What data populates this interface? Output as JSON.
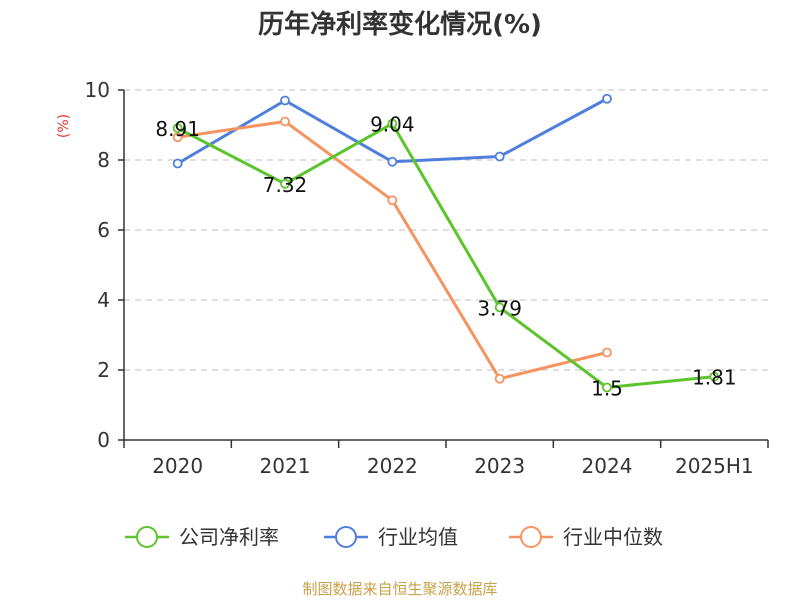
{
  "chart_data": {
    "type": "line",
    "title": "历年净利率变化情况(%)",
    "ylabel": "(%)",
    "xlabel": "",
    "categories": [
      "2020",
      "2021",
      "2022",
      "2023",
      "2024",
      "2025H1"
    ],
    "ylim": [
      0,
      10
    ],
    "yticks": [
      "0",
      "2",
      "4",
      "6",
      "8",
      "10"
    ],
    "grid": true,
    "legend_position": "bottom",
    "series": [
      {
        "name": "公司净利率",
        "color": "#5cc42c",
        "values": [
          8.91,
          7.32,
          9.04,
          3.79,
          1.5,
          1.81
        ],
        "labels": [
          "8.91",
          "7.32",
          "9.04",
          "3.79",
          "1.5",
          "1.81"
        ]
      },
      {
        "name": "行业均值",
        "color": "#4f7fdc",
        "values": [
          7.9,
          9.7,
          7.95,
          8.1,
          9.75,
          null
        ]
      },
      {
        "name": "行业中位数",
        "color": "#f59361",
        "values": [
          8.65,
          9.1,
          6.85,
          1.75,
          2.5,
          null
        ]
      }
    ]
  },
  "footer": "制图数据来自恒生聚源数据库"
}
